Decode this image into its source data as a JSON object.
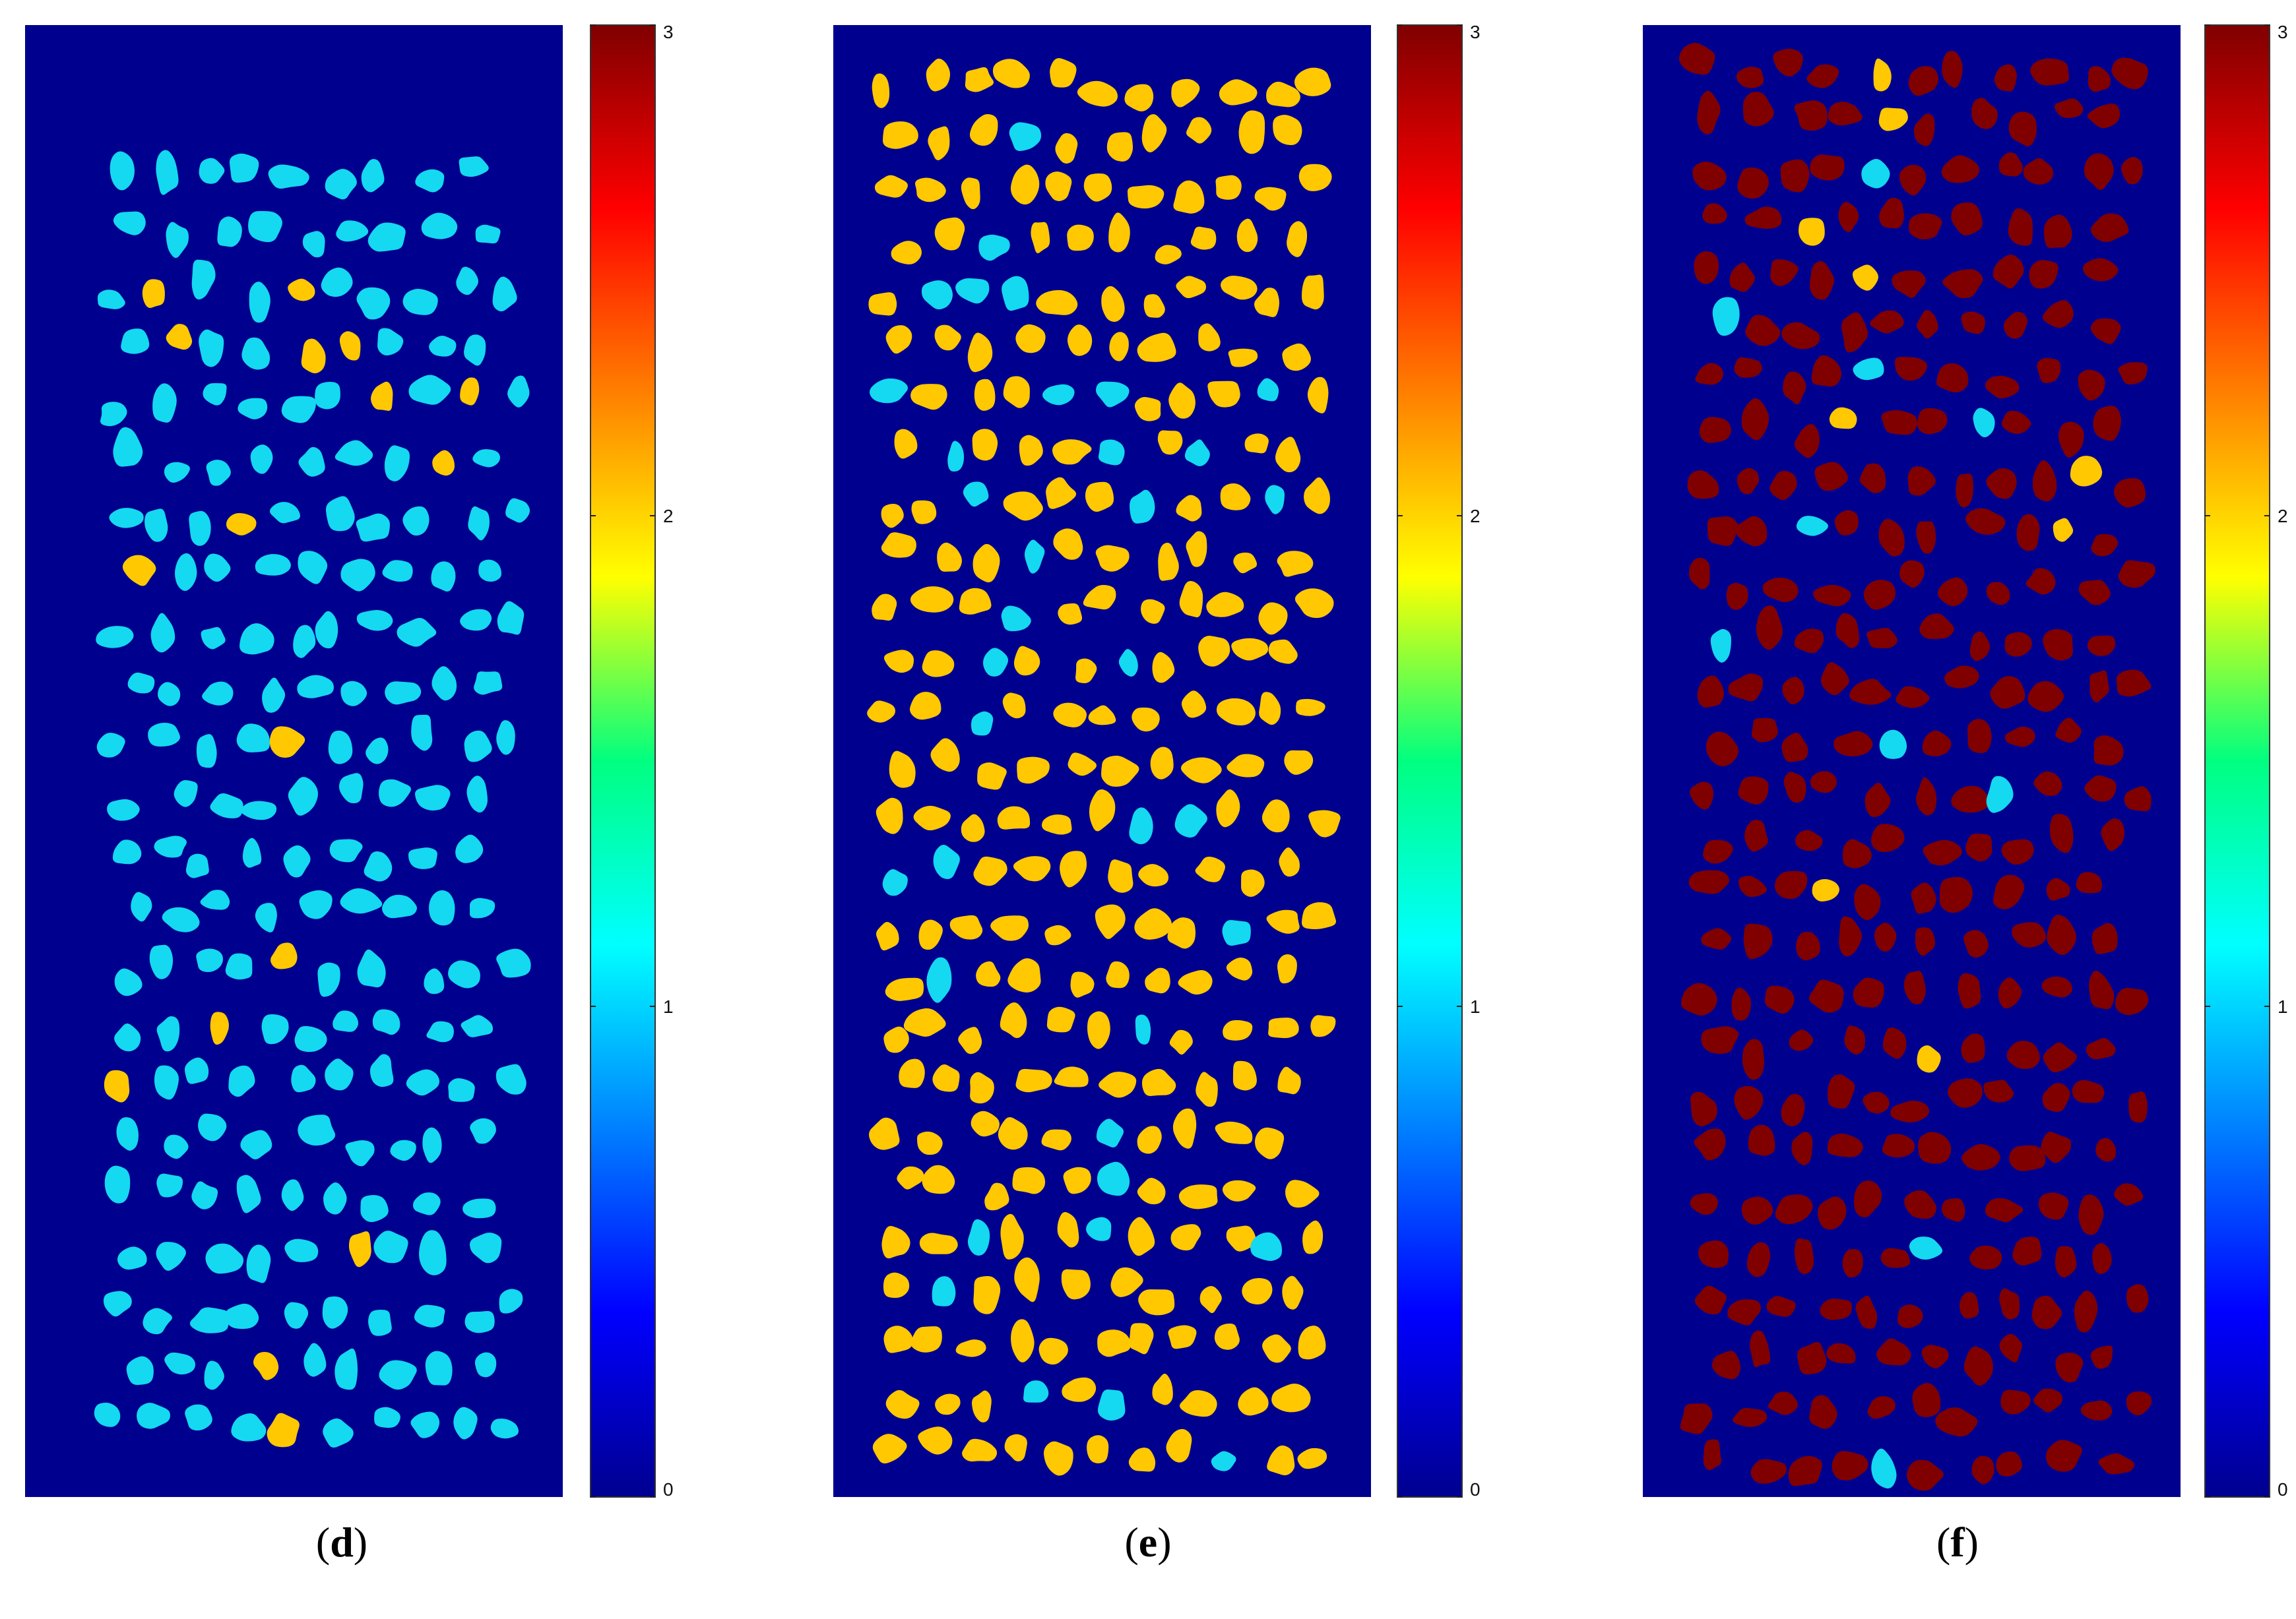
{
  "chart_data": [
    {
      "type": "heatmap",
      "panel_label": "d",
      "dominant_state": 1,
      "particle_count_estimate": 230,
      "minority_state": 2,
      "minority_count": 17,
      "colorbar": {
        "min": 0,
        "max": 3,
        "ticks": [
          "0",
          "1",
          "2",
          "3"
        ],
        "colormap": "jet"
      }
    },
    {
      "type": "heatmap",
      "panel_label": "e",
      "dominant_state": 2,
      "particle_count_estimate": 290,
      "minority_state": 1,
      "minority_count": 36,
      "colorbar": {
        "min": 0,
        "max": 3,
        "ticks": [
          "0",
          "1",
          "2",
          "3"
        ],
        "colormap": "jet"
      }
    },
    {
      "type": "heatmap",
      "panel_label": "f",
      "dominant_state": 3,
      "particle_count_estimate": 300,
      "minority_state": 1,
      "minority_count": 10,
      "minority2_state": 2,
      "minority2_count": 9,
      "colorbar": {
        "min": 0,
        "max": 3,
        "ticks": [
          "0",
          "1",
          "2",
          "3"
        ],
        "colormap": "jet"
      }
    }
  ],
  "captions": [
    {
      "open": "(",
      "letter": "d",
      "close": ")"
    },
    {
      "open": "(",
      "letter": "e",
      "close": ")"
    },
    {
      "open": "(",
      "letter": "f",
      "close": ")"
    }
  ],
  "colors": {
    "background_state_0": "#00008F",
    "state_1": "#14D9F0",
    "state_2": "#FFC800",
    "state_3": "#800000"
  }
}
